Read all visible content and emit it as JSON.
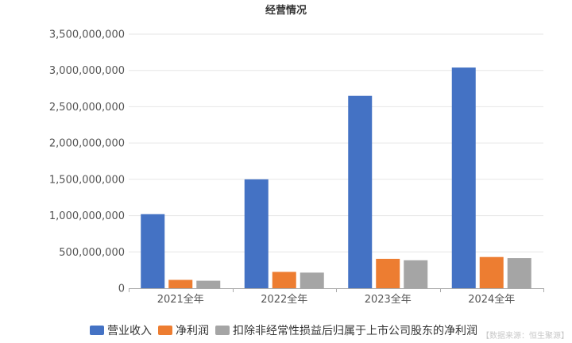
{
  "chart_data": {
    "type": "bar",
    "title": "经营情况",
    "categories": [
      "2021全年",
      "2022全年",
      "2023全年",
      "2024全年"
    ],
    "series": [
      {
        "name": "营业收入",
        "color": "#4472c4",
        "values": [
          1020000000,
          1500000000,
          2650000000,
          3040000000
        ]
      },
      {
        "name": "净利润",
        "color": "#ed7d31",
        "values": [
          115000000,
          225000000,
          405000000,
          430000000
        ]
      },
      {
        "name": "扣除非经常性损益后归属于上市公司股东的净利润",
        "color": "#a5a5a5",
        "values": [
          103000000,
          215000000,
          385000000,
          415000000
        ]
      }
    ],
    "ylim": [
      0,
      3500000000
    ],
    "y_ticks": [
      0,
      500000000,
      1000000000,
      1500000000,
      2000000000,
      2500000000,
      3000000000,
      3500000000
    ],
    "y_tick_labels": [
      "0",
      "500,000,000",
      "1,000,000,000",
      "1,500,000,000",
      "2,000,000,000",
      "2,500,000,000",
      "3,000,000,000",
      "3,500,000,000"
    ],
    "grid": true,
    "legend_position": "bottom",
    "source_note": "【数据来源：恒生聚源】"
  }
}
